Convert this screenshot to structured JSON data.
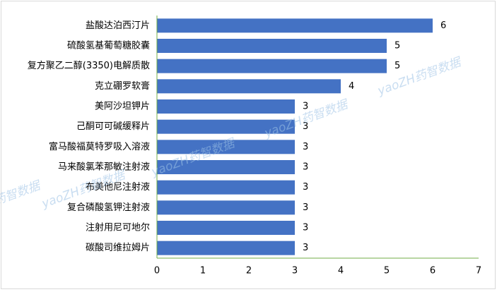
{
  "chart_data": {
    "type": "barh",
    "categories": [
      "盐酸达泊西汀片",
      "硫酸氢基葡萄糖胶囊",
      "复方聚乙二醇(3350)电解质散",
      "克立硼罗软膏",
      "美阿沙坦钾片",
      "己酮可可碱缓释片",
      "富马酸福莫特罗吸入溶液",
      "马来酸氯苯那敏注射液",
      "布美他尼注射液",
      "复合磷酸氢钾注射液",
      "注射用尼可地尔",
      "碳酸司维拉姆片"
    ],
    "values": [
      6,
      5,
      5,
      4,
      3,
      3,
      3,
      3,
      3,
      3,
      3,
      3
    ],
    "color": "#4472c4",
    "axis_color": "#70ad47",
    "xlim": [
      0,
      7
    ],
    "xticks": [
      0,
      1,
      2,
      3,
      4,
      5,
      6,
      7
    ],
    "watermark": "yaoZH药智数据"
  }
}
